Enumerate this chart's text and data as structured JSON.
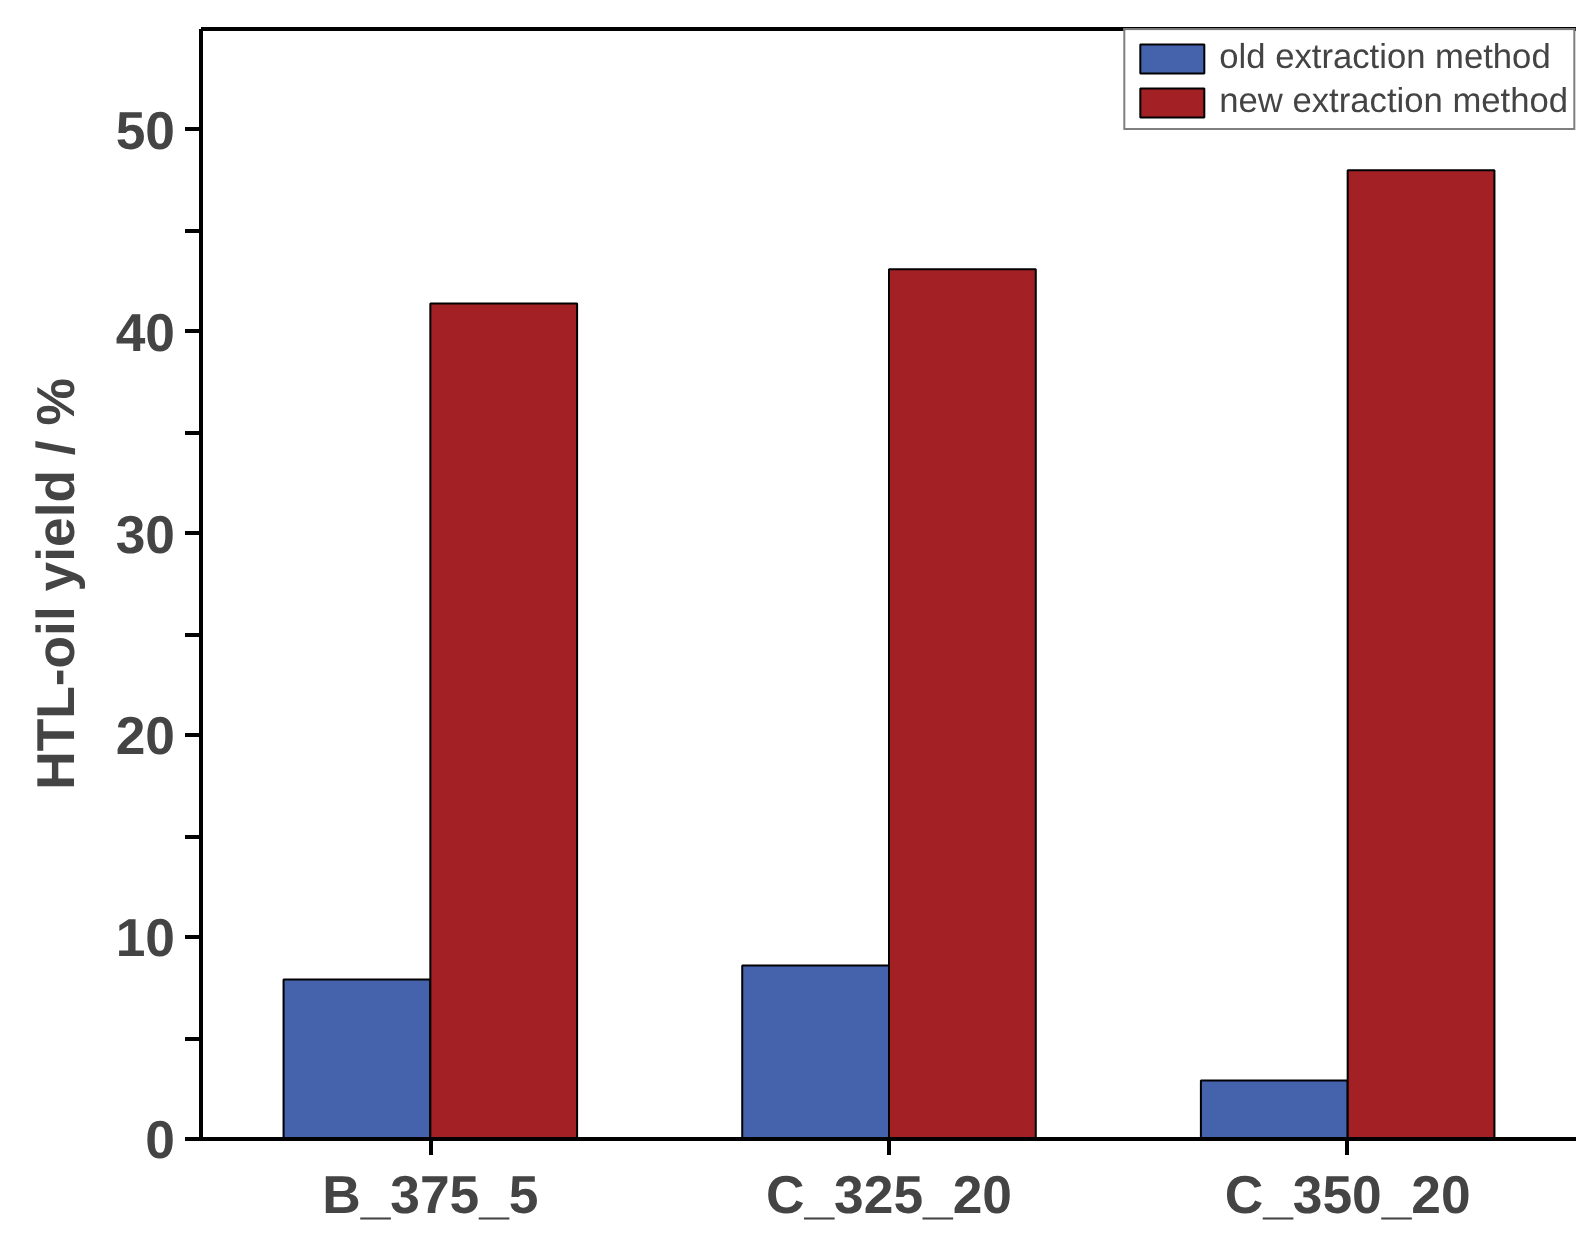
{
  "chart_data": {
    "type": "bar",
    "ylabel": "HTL-oil yield / %",
    "categories": [
      "B_375_5",
      "C_325_20",
      "C_350_20"
    ],
    "series": [
      {
        "name": "old extraction method",
        "color": "#4563ac",
        "values": [
          7.9,
          8.6,
          2.9
        ]
      },
      {
        "name": "new extraction method",
        "color": "#a32025",
        "values": [
          41.4,
          43.1,
          48.0
        ]
      }
    ],
    "ylim": [
      0,
      55
    ],
    "yticks": [
      0,
      {
        "value": 5,
        "label": null
      },
      10,
      {
        "value": 15,
        "label": null
      },
      20,
      {
        "value": 25,
        "label": null
      },
      30,
      {
        "value": 35,
        "label": null
      },
      40,
      {
        "value": 45,
        "label": null
      },
      50
    ],
    "grid": false,
    "legend": "top right"
  }
}
